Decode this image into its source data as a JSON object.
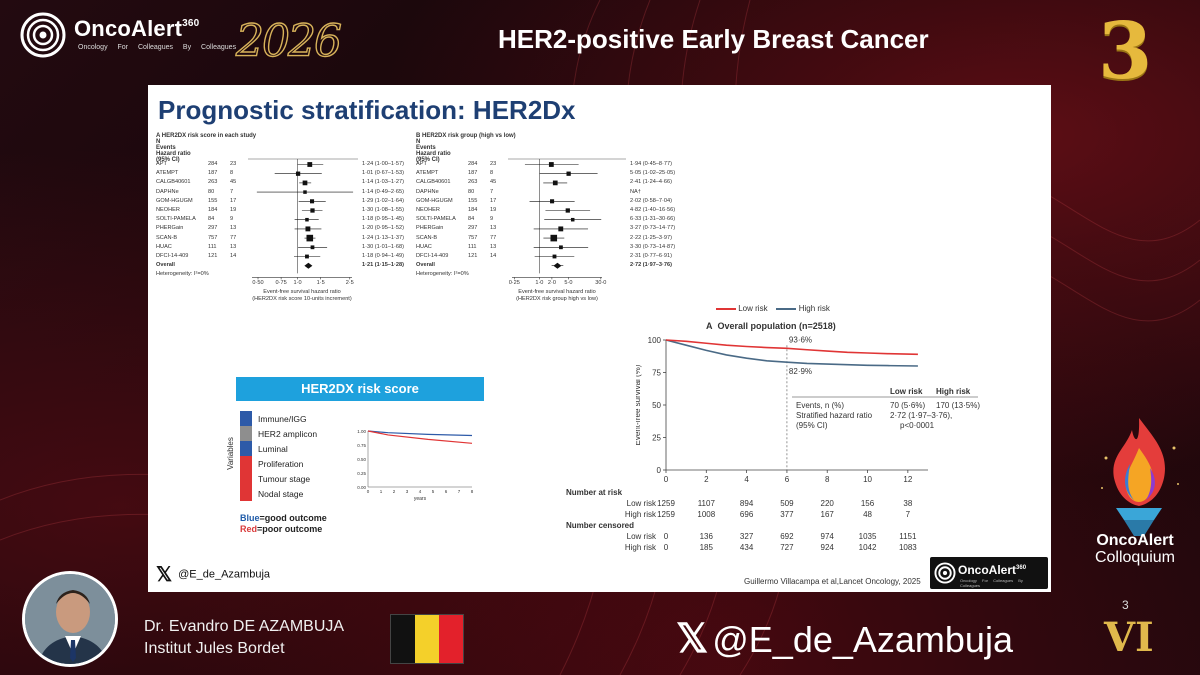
{
  "header": {
    "brand": "OncoAlert",
    "brand_sup": "360",
    "brand_sub": "Oncology  For Colleagues  By Colleagues",
    "year": "2026",
    "title": "HER2-positive Early Breast Cancer",
    "number": "3"
  },
  "slide": {
    "title": "Prognostic stratification: HER2Dx",
    "forest_a": {
      "panel_title": "A  HER2DX risk score in each study",
      "col_n": "N",
      "col_events": "Events",
      "col_hr": "Hazard ratio",
      "col_hr2": "(95% CI)",
      "rows": [
        {
          "study": "APT",
          "n": "284",
          "events": "23",
          "hr": "1·24 (1·00–1·57)"
        },
        {
          "study": "ATEMPT",
          "n": "187",
          "events": "8",
          "hr": "1·01 (0·67–1·53)"
        },
        {
          "study": "CALGB40601",
          "n": "263",
          "events": "45",
          "hr": "1·14 (1·03–1·27)"
        },
        {
          "study": "DAPHNe",
          "n": "80",
          "events": "7",
          "hr": "1·14 (0·49–2·65)"
        },
        {
          "study": "GOM-HGUGM",
          "n": "155",
          "events": "17",
          "hr": "1·29 (1·02–1·64)"
        },
        {
          "study": "NEOHER",
          "n": "184",
          "events": "19",
          "hr": "1·30 (1·08–1·55)"
        },
        {
          "study": "SOLTI-PAMELA",
          "n": "84",
          "events": "9",
          "hr": "1·18 (0·95–1·45)"
        },
        {
          "study": "PHERGain",
          "n": "297",
          "events": "13",
          "hr": "1·20 (0·95–1·52)"
        },
        {
          "study": "SCAN-B",
          "n": "757",
          "events": "77",
          "hr": "1·24 (1·13–1·37)"
        },
        {
          "study": "HUAC",
          "n": "111",
          "events": "13",
          "hr": "1·30 (1·01–1·68)"
        },
        {
          "study": "DFCI-14-409",
          "n": "121",
          "events": "14",
          "hr": "1·18 (0·94–1·49)"
        },
        {
          "study": "Overall",
          "n": "",
          "events": "",
          "hr": "1·21 (1·15–1·28)"
        }
      ],
      "heterogeneity": "Heterogeneity: I²=0%",
      "ticks": [
        "0·50",
        "0·75",
        "1·0",
        "1·5",
        "2·5"
      ],
      "xlabel1": "Event-free survival hazard ratio",
      "xlabel2": "(HER2DX risk score 10-units increment)"
    },
    "forest_b": {
      "panel_title": "B  HER2DX risk group (high vs low)",
      "col_n": "N",
      "col_events": "Events",
      "col_hr": "Hazard ratio",
      "col_hr2": "(95% CI)",
      "rows": [
        {
          "study": "APT",
          "n": "284",
          "events": "23",
          "hr": "1·94 (0·45–8·77)"
        },
        {
          "study": "ATEMPT",
          "n": "187",
          "events": "8",
          "hr": "5·05 (1·02–25·05)"
        },
        {
          "study": "CALGB40601",
          "n": "263",
          "events": "45",
          "hr": "2·41 (1·24–4·66)"
        },
        {
          "study": "DAPHNe",
          "n": "80",
          "events": "7",
          "hr": "NA†"
        },
        {
          "study": "GOM-HGUGM",
          "n": "155",
          "events": "17",
          "hr": "2·02 (0·58–7·04)"
        },
        {
          "study": "NEOHER",
          "n": "184",
          "events": "19",
          "hr": "4·82 (1·40–16·56)"
        },
        {
          "study": "SOLTI-PAMELA",
          "n": "84",
          "events": "9",
          "hr": "6·33 (1·31–30·66)"
        },
        {
          "study": "PHERGain",
          "n": "297",
          "events": "13",
          "hr": "3·27 (0·73–14·77)"
        },
        {
          "study": "SCAN-B",
          "n": "757",
          "events": "77",
          "hr": "2·22 (1·25–3·97)"
        },
        {
          "study": "HUAC",
          "n": "111",
          "events": "13",
          "hr": "3·30 (0·73–14·87)"
        },
        {
          "study": "DFCI-14-409",
          "n": "121",
          "events": "14",
          "hr": "2·31 (0·77–6·91)"
        },
        {
          "study": "Overall",
          "n": "",
          "events": "",
          "hr": "2·72 (1·97–3·76)"
        }
      ],
      "heterogeneity": "Heterogeneity: I²=0%",
      "ticks": [
        "0·25",
        "1·0",
        "2·0",
        "5·0",
        "30·0"
      ],
      "xlabel1": "Event-free survival hazard ratio",
      "xlabel2": "(HER2DX risk group high vs low)"
    },
    "km": {
      "legend_low": "Low risk",
      "legend_high": "High risk",
      "panel": "A",
      "subtitle": "Overall population (n=2518)",
      "ylabel": "Event-free survival (%)",
      "y_ticks": [
        "100",
        "75",
        "50",
        "25",
        "0"
      ],
      "x_ticks": [
        "0",
        "2",
        "4",
        "6",
        "8",
        "10",
        "12"
      ],
      "annot_low": "93·6%",
      "annot_high": "82·9%",
      "stats": {
        "col_low": "Low risk",
        "col_high": "High risk",
        "row1_label": "Events, n (%)",
        "row1_low": "70 (5·6%)",
        "row1_high": "170 (13·5%)",
        "row2_label": "Stratified hazard ratio",
        "row2_label2": "(95% CI)",
        "row2_val": "2·72 (1·97–3·76),",
        "row2_p": "p<0·0001"
      },
      "risk_header": "Number at risk",
      "censored_header": "Number censored",
      "risk_low_label": "Low risk",
      "risk_high_label": "High risk",
      "risk_low": [
        "1259",
        "1107",
        "894",
        "509",
        "220",
        "156",
        "38"
      ],
      "risk_high": [
        "1259",
        "1008",
        "696",
        "377",
        "167",
        "48",
        "7"
      ],
      "cens_low": [
        "0",
        "136",
        "327",
        "692",
        "974",
        "1035",
        "1151"
      ],
      "cens_high": [
        "0",
        "185",
        "434",
        "727",
        "924",
        "1042",
        "1083"
      ]
    },
    "her2dx": {
      "bar_title": "HER2DX risk score",
      "vert_label": "Variables",
      "variables": [
        "Immune/IGG",
        "HER2 amplicon",
        "Luminal",
        "Proliferation",
        "Tumour stage",
        "Nodal stage"
      ],
      "var_colors": [
        "#2d5aa8",
        "#8e8e8e",
        "#2d5aa8",
        "#e03535",
        "#e03535",
        "#e03535"
      ],
      "y_ticks": [
        "1.00",
        "0.75",
        "0.50",
        "0.25",
        "0.00"
      ],
      "x_ticks": [
        "0",
        "1",
        "2",
        "3",
        "4",
        "5",
        "6",
        "7",
        "8"
      ],
      "xlabel": "years",
      "good_a": "Blue",
      "good_b": "=good outcome",
      "poor_a": "Red",
      "poor_b": "=poor outcome"
    },
    "handle_small": "@E_de_Azambuja",
    "citation": "Guillermo Villacampa et al,Lancet Oncology, 2025",
    "mini_logo": "OncoAlert",
    "mini_logo_sup": "360",
    "mini_logo_sub": "Oncology  For Colleagues  By Colleagues"
  },
  "footer": {
    "speaker_name": "Dr. Evandro DE AZAMBUJA",
    "speaker_inst": "Institut Jules Bordet",
    "x_handle": "@E_de_Azambuja",
    "colloq_1": "OncoAlert",
    "colloq_2": "Colloquium",
    "small_num": "3",
    "roman": "VI",
    "flag_colors": [
      "#111111",
      "#f4d02a",
      "#e3212b"
    ]
  },
  "colors": {
    "low_risk": "#e03535",
    "high_risk": "#4a6a86",
    "slide_title": "#1e3f73",
    "accent_bar": "#1ea1dd",
    "gold": "#e6b93d"
  }
}
